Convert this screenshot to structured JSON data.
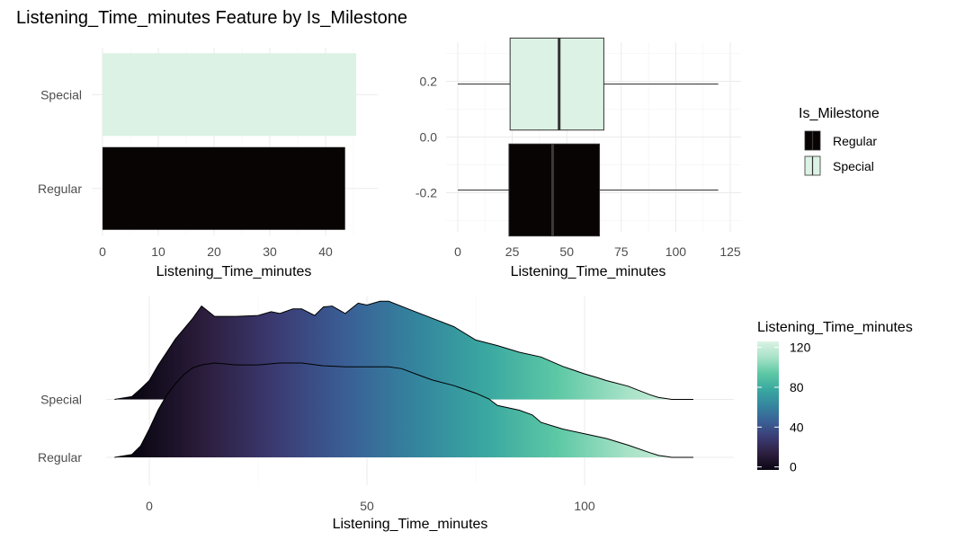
{
  "title": "Listening_Time_minutes Feature by Is_Milestone",
  "colors": {
    "regular": "#080404",
    "special": "#dbf2e4"
  },
  "legend_fill": {
    "title": "Is_Milestone",
    "items": [
      {
        "label": "Regular",
        "color": "#080404"
      },
      {
        "label": "Special",
        "color": "#dbf2e4"
      }
    ]
  },
  "legend_gradient": {
    "title": "Listening_Time_minutes",
    "ticks": [
      "0",
      "40",
      "80",
      "120"
    ],
    "tick_values": [
      0,
      40,
      80,
      120
    ],
    "range": [
      -3,
      126
    ],
    "palette": [
      "#0a0612",
      "#2d1e3e",
      "#3b3b73",
      "#3a5f96",
      "#34859e",
      "#3aa8a1",
      "#5dc8a4",
      "#a7e2c7",
      "#dbf2e4"
    ]
  },
  "chart_data": [
    {
      "type": "bar",
      "orientation": "horizontal",
      "categories": [
        "Regular",
        "Special"
      ],
      "values": [
        43.5,
        45.5
      ],
      "xlabel": "Listening_Time_minutes",
      "ylabel": "",
      "xlim": [
        0,
        47
      ],
      "xticks": [
        "0",
        "10",
        "20",
        "30",
        "40"
      ],
      "xtick_values": [
        0,
        10,
        20,
        30,
        40
      ],
      "grid": true
    },
    {
      "type": "boxplot",
      "orientation": "horizontal",
      "xlabel": "Listening_Time_minutes",
      "ylabel": "",
      "xlim": [
        0,
        125
      ],
      "ylim": [
        -0.34,
        0.34
      ],
      "xticks": [
        "0",
        "25",
        "50",
        "75",
        "100",
        "125"
      ],
      "xtick_values": [
        0,
        25,
        50,
        75,
        100,
        125
      ],
      "yticks": [
        "0.2",
        "0.0",
        "-0.2"
      ],
      "ytick_values": [
        0.2,
        0.0,
        -0.2
      ],
      "grid": true,
      "boxes": [
        {
          "group": "Regular",
          "center": -0.19,
          "min": 0,
          "q1": 23.5,
          "median": 43.5,
          "q3": 65,
          "max": 119.5
        },
        {
          "group": "Special",
          "center": 0.19,
          "min": 0,
          "q1": 24,
          "median": 46.5,
          "q3": 67,
          "max": 119.5
        }
      ]
    },
    {
      "type": "area",
      "subtype": "density_ridgeline",
      "xlabel": "Listening_Time_minutes",
      "ylabel": "",
      "xlim": [
        -9,
        129
      ],
      "xticks": [
        "0",
        "50",
        "100"
      ],
      "xtick_values": [
        0,
        50,
        100
      ],
      "categories": [
        "Regular",
        "Special"
      ],
      "grid": true,
      "series": [
        {
          "name": "Regular",
          "x": [
            -8,
            -4,
            -2,
            0,
            2,
            4,
            6,
            8,
            10,
            12,
            15,
            20,
            25,
            30,
            35,
            40,
            45,
            50,
            55,
            58,
            62,
            65,
            70,
            75,
            78,
            80,
            85,
            88,
            90,
            95,
            100,
            105,
            110,
            115,
            117,
            118.5,
            120,
            125
          ],
          "y": [
            0,
            0.03,
            0.12,
            0.3,
            0.5,
            0.66,
            0.78,
            0.88,
            0.95,
            0.98,
            1.0,
            0.98,
            0.98,
            1.0,
            1.0,
            0.97,
            0.96,
            0.96,
            0.96,
            0.94,
            0.87,
            0.82,
            0.76,
            0.68,
            0.62,
            0.55,
            0.5,
            0.45,
            0.37,
            0.3,
            0.25,
            0.2,
            0.13,
            0.05,
            0.02,
            0.01,
            0,
            0
          ]
        },
        {
          "name": "Special",
          "x": [
            -8,
            -4,
            -2,
            0,
            2,
            4,
            6,
            8,
            10,
            12,
            15,
            20,
            25,
            28,
            30,
            33,
            35,
            38,
            40,
            42,
            45,
            48,
            50,
            53,
            55,
            60,
            65,
            70,
            75,
            80,
            85,
            90,
            95,
            100,
            103,
            105,
            110,
            115,
            117,
            118.5,
            120,
            125
          ],
          "y": [
            0,
            0.03,
            0.11,
            0.2,
            0.36,
            0.5,
            0.64,
            0.75,
            0.86,
            0.99,
            0.88,
            0.88,
            0.89,
            0.93,
            0.91,
            0.96,
            0.96,
            0.89,
            0.98,
            0.99,
            0.91,
            1.02,
            1.0,
            1.04,
            1.04,
            0.95,
            0.86,
            0.77,
            0.63,
            0.57,
            0.5,
            0.45,
            0.35,
            0.27,
            0.23,
            0.2,
            0.14,
            0.05,
            0.02,
            0.01,
            0,
            0
          ]
        }
      ]
    }
  ]
}
